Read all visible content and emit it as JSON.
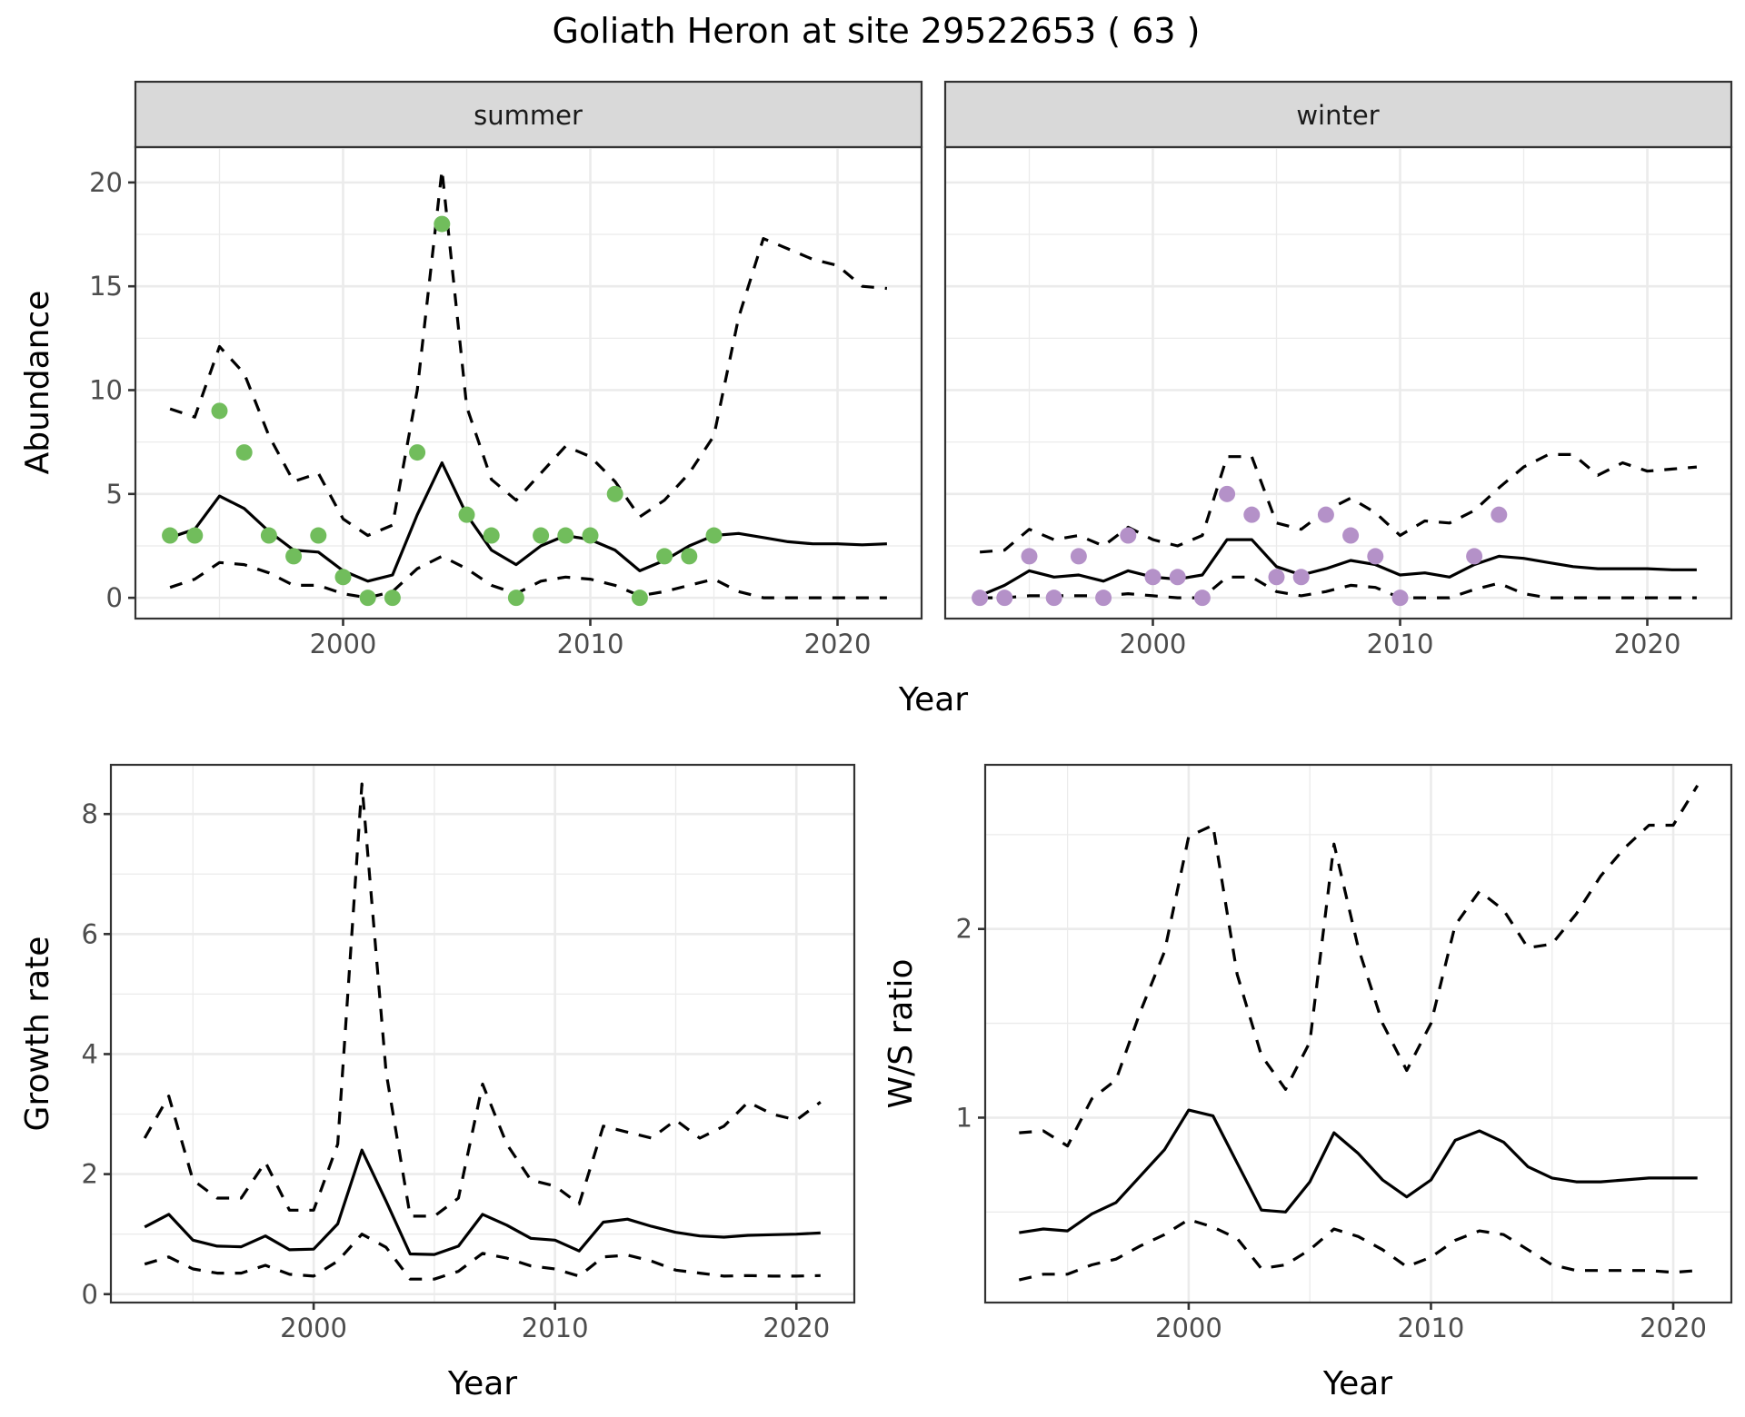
{
  "chart_data": [
    {
      "type": "line",
      "panel": "abundance",
      "title": "Goliath Heron at site 29522653 ( 63 )",
      "xlabel": "Year",
      "ylabel": "Abundance",
      "xlim": [
        1991.6,
        2023.4
      ],
      "ylim": [
        -1.0,
        21.7
      ],
      "xticks": [
        2000,
        2010,
        2020
      ],
      "xtick_labels": [
        "2000",
        "2010",
        "2020"
      ],
      "yticks": [
        0,
        5,
        10,
        15,
        20
      ],
      "ytick_labels": [
        "0",
        "5",
        "10",
        "15",
        "20"
      ],
      "grid": true,
      "facets": [
        {
          "label": "summer",
          "point_color": "#71bd5c",
          "x": [
            1993,
            1994,
            1995,
            1996,
            1997,
            1998,
            1999,
            2000,
            2001,
            2002,
            2003,
            2004,
            2005,
            2006,
            2007,
            2008,
            2009,
            2010,
            2011,
            2012,
            2013,
            2014,
            2015,
            2016,
            2017,
            2018,
            2019,
            2020,
            2021,
            2022
          ],
          "mean": [
            2.9,
            3.3,
            4.9,
            4.3,
            3.2,
            2.3,
            2.2,
            1.3,
            0.8,
            1.1,
            4.0,
            6.5,
            4.0,
            2.3,
            1.6,
            2.5,
            3.0,
            2.8,
            2.3,
            1.3,
            1.8,
            2.5,
            3.0,
            3.1,
            2.9,
            2.7,
            2.6,
            2.6,
            2.55,
            2.6
          ],
          "upper": [
            9.1,
            8.7,
            12.1,
            10.8,
            7.8,
            5.6,
            6.0,
            3.8,
            3.0,
            3.5,
            10.0,
            20.6,
            9.2,
            5.7,
            4.7,
            6.0,
            7.3,
            6.8,
            5.6,
            3.9,
            4.7,
            6.0,
            7.8,
            13.5,
            17.3,
            16.8,
            16.3,
            16.0,
            15.0,
            14.9
          ],
          "lower": [
            0.5,
            0.9,
            1.7,
            1.6,
            1.2,
            0.6,
            0.6,
            0.2,
            0.0,
            0.3,
            1.4,
            2.0,
            1.4,
            0.6,
            0.2,
            0.8,
            1.0,
            0.9,
            0.6,
            0.1,
            0.3,
            0.6,
            0.9,
            0.3,
            0.0,
            0.0,
            0.0,
            0.0,
            0.0,
            0.0
          ],
          "points": {
            "x": [
              1993,
              1994,
              1995,
              1996,
              1997,
              1998,
              1999,
              2000,
              2001,
              2002,
              2003,
              2004,
              2005,
              2006,
              2007,
              2008,
              2009,
              2010,
              2011,
              2012,
              2013,
              2014,
              2015
            ],
            "y": [
              3,
              3,
              9,
              7,
              3,
              2,
              3,
              1,
              0,
              0,
              7,
              18,
              4,
              3,
              0,
              3,
              3,
              3,
              5,
              0,
              2,
              2,
              3
            ]
          }
        },
        {
          "label": "winter",
          "point_color": "#b491c8",
          "x": [
            1993,
            1994,
            1995,
            1996,
            1997,
            1998,
            1999,
            2000,
            2001,
            2002,
            2003,
            2004,
            2005,
            2006,
            2007,
            2008,
            2009,
            2010,
            2011,
            2012,
            2013,
            2014,
            2015,
            2016,
            2017,
            2018,
            2019,
            2020,
            2021,
            2022
          ],
          "mean": [
            0.1,
            0.6,
            1.3,
            1.0,
            1.1,
            0.8,
            1.3,
            1.0,
            0.9,
            1.1,
            2.8,
            2.8,
            1.5,
            1.1,
            1.4,
            1.8,
            1.6,
            1.1,
            1.2,
            1.0,
            1.6,
            2.0,
            1.9,
            1.7,
            1.5,
            1.4,
            1.4,
            1.4,
            1.35,
            1.35
          ],
          "upper": [
            2.2,
            2.3,
            3.3,
            2.8,
            3.0,
            2.5,
            3.4,
            2.8,
            2.5,
            3.0,
            6.8,
            6.8,
            3.6,
            3.3,
            4.2,
            4.8,
            4.1,
            3.0,
            3.7,
            3.6,
            4.2,
            5.3,
            6.3,
            6.9,
            6.9,
            5.9,
            6.5,
            6.1,
            6.2,
            6.3
          ],
          "lower": [
            0.0,
            0.0,
            0.1,
            0.1,
            0.1,
            0.1,
            0.2,
            0.1,
            0.0,
            0.0,
            1.0,
            1.0,
            0.3,
            0.1,
            0.3,
            0.6,
            0.5,
            0.0,
            0.0,
            0.0,
            0.4,
            0.7,
            0.2,
            0.0,
            0.0,
            0.0,
            0.0,
            0.0,
            0.0,
            0.0
          ],
          "points": {
            "x": [
              1993,
              1994,
              1995,
              1996,
              1997,
              1998,
              1999,
              2000,
              2001,
              2002,
              2003,
              2004,
              2005,
              2006,
              2007,
              2008,
              2009,
              2010,
              2013,
              2014
            ],
            "y": [
              0,
              0,
              2,
              0,
              2,
              0,
              3,
              1,
              1,
              0,
              5,
              4,
              1,
              1,
              4,
              3,
              2,
              0,
              2,
              4
            ]
          }
        }
      ]
    },
    {
      "type": "line",
      "panel": "growth",
      "xlabel": "Year",
      "ylabel": "Growth rate",
      "xlim": [
        1991.6,
        2022.4
      ],
      "ylim": [
        -0.14,
        8.82
      ],
      "xticks": [
        2000,
        2010,
        2020
      ],
      "xtick_labels": [
        "2000",
        "2010",
        "2020"
      ],
      "yticks": [
        0,
        2,
        4,
        6,
        8
      ],
      "ytick_labels": [
        "0",
        "2",
        "4",
        "6",
        "8"
      ],
      "grid": true,
      "x": [
        1993,
        1994,
        1995,
        1996,
        1997,
        1998,
        1999,
        2000,
        2001,
        2002,
        2003,
        2004,
        2005,
        2006,
        2007,
        2008,
        2009,
        2010,
        2011,
        2012,
        2013,
        2014,
        2015,
        2016,
        2017,
        2018,
        2019,
        2020,
        2021
      ],
      "mean": [
        1.12,
        1.33,
        0.9,
        0.8,
        0.79,
        0.97,
        0.74,
        0.75,
        1.17,
        2.4,
        1.55,
        0.67,
        0.66,
        0.8,
        1.33,
        1.15,
        0.93,
        0.9,
        0.72,
        1.2,
        1.25,
        1.13,
        1.03,
        0.97,
        0.95,
        0.98,
        0.99,
        1.0,
        1.02
      ],
      "upper": [
        2.6,
        3.3,
        1.9,
        1.6,
        1.6,
        2.2,
        1.4,
        1.4,
        2.5,
        8.5,
        3.7,
        1.3,
        1.3,
        1.6,
        3.5,
        2.5,
        1.9,
        1.8,
        1.5,
        2.8,
        2.7,
        2.6,
        2.9,
        2.6,
        2.8,
        3.2,
        3.0,
        2.9,
        3.2
      ],
      "lower": [
        0.5,
        0.62,
        0.42,
        0.35,
        0.35,
        0.48,
        0.33,
        0.3,
        0.55,
        1.0,
        0.78,
        0.25,
        0.25,
        0.38,
        0.68,
        0.6,
        0.47,
        0.42,
        0.3,
        0.62,
        0.65,
        0.55,
        0.4,
        0.35,
        0.3,
        0.31,
        0.3,
        0.3,
        0.31
      ]
    },
    {
      "type": "line",
      "panel": "ws_ratio",
      "xlabel": "Year",
      "ylabel": "W/S ratio",
      "xlim": [
        1991.6,
        2022.4
      ],
      "ylim": [
        0.02,
        2.87
      ],
      "xticks": [
        2000,
        2010,
        2020
      ],
      "xtick_labels": [
        "2000",
        "2010",
        "2020"
      ],
      "yticks": [
        1,
        2
      ],
      "ytick_labels": [
        "1",
        "2"
      ],
      "grid": true,
      "x": [
        1993,
        1994,
        1995,
        1996,
        1997,
        1998,
        1999,
        2000,
        2001,
        2002,
        2003,
        2004,
        2005,
        2006,
        2007,
        2008,
        2009,
        2010,
        2011,
        2012,
        2013,
        2014,
        2015,
        2016,
        2017,
        2018,
        2019,
        2020,
        2021
      ],
      "mean": [
        0.39,
        0.41,
        0.4,
        0.49,
        0.55,
        0.69,
        0.83,
        1.04,
        1.01,
        0.76,
        0.51,
        0.5,
        0.66,
        0.92,
        0.81,
        0.67,
        0.58,
        0.67,
        0.88,
        0.93,
        0.87,
        0.74,
        0.68,
        0.66,
        0.66,
        0.67,
        0.68,
        0.68,
        0.68
      ],
      "upper": [
        0.92,
        0.93,
        0.85,
        1.1,
        1.2,
        1.56,
        1.88,
        2.49,
        2.55,
        1.76,
        1.33,
        1.15,
        1.4,
        2.45,
        1.9,
        1.5,
        1.25,
        1.5,
        2.02,
        2.2,
        2.1,
        1.9,
        1.92,
        2.08,
        2.28,
        2.43,
        2.55,
        2.55,
        2.76
      ],
      "lower": [
        0.14,
        0.17,
        0.17,
        0.22,
        0.25,
        0.32,
        0.38,
        0.46,
        0.42,
        0.36,
        0.2,
        0.22,
        0.3,
        0.41,
        0.37,
        0.3,
        0.21,
        0.26,
        0.35,
        0.4,
        0.38,
        0.3,
        0.22,
        0.19,
        0.19,
        0.19,
        0.19,
        0.18,
        0.19
      ]
    }
  ],
  "colors": {
    "strip_background": "#d9d9d9",
    "grid": "#ebebeb",
    "border": "#333333",
    "summer_points": "#71bd5c",
    "winter_points": "#b491c8"
  }
}
